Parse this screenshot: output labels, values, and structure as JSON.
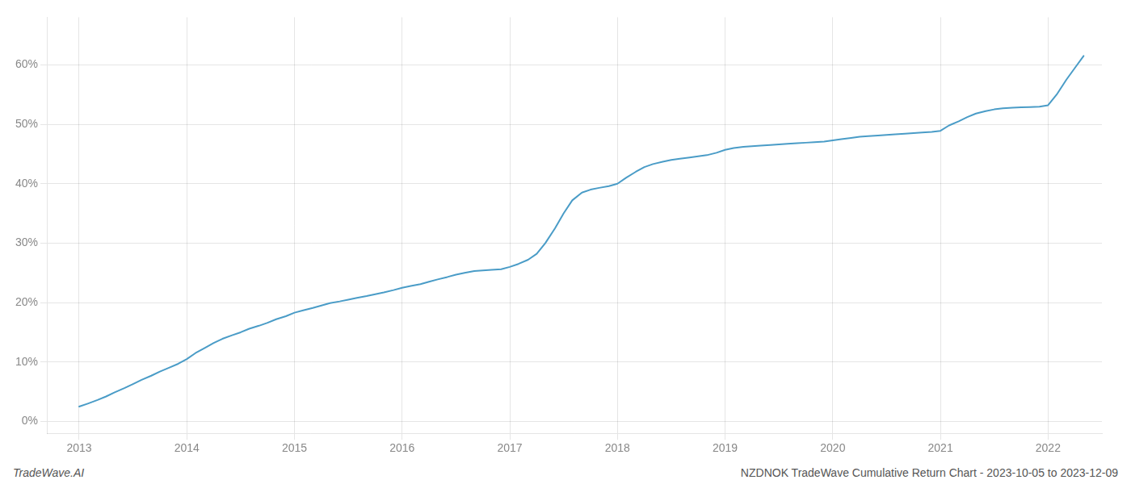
{
  "chart_data": {
    "type": "line",
    "annotations": [
      "TradeWave.AI",
      "NZDNOK TradeWave Cumulative Return Chart - 2023-10-05 to 2023-12-09"
    ],
    "x": [
      2013.0,
      2013.08,
      2013.17,
      2013.25,
      2013.33,
      2013.42,
      2013.5,
      2013.58,
      2013.67,
      2013.75,
      2013.83,
      2013.92,
      2014.0,
      2014.08,
      2014.17,
      2014.25,
      2014.33,
      2014.42,
      2014.5,
      2014.58,
      2014.67,
      2014.75,
      2014.83,
      2014.92,
      2015.0,
      2015.08,
      2015.17,
      2015.25,
      2015.33,
      2015.42,
      2015.5,
      2015.58,
      2015.67,
      2015.75,
      2015.83,
      2015.92,
      2016.0,
      2016.08,
      2016.17,
      2016.25,
      2016.33,
      2016.42,
      2016.5,
      2016.58,
      2016.67,
      2016.75,
      2016.83,
      2016.92,
      2017.0,
      2017.08,
      2017.17,
      2017.25,
      2017.33,
      2017.42,
      2017.5,
      2017.58,
      2017.67,
      2017.75,
      2017.83,
      2017.92,
      2018.0,
      2018.08,
      2018.17,
      2018.25,
      2018.33,
      2018.42,
      2018.5,
      2018.58,
      2018.67,
      2018.75,
      2018.83,
      2018.92,
      2019.0,
      2019.08,
      2019.17,
      2019.25,
      2019.33,
      2019.42,
      2019.5,
      2019.58,
      2019.67,
      2019.75,
      2019.83,
      2019.92,
      2020.0,
      2020.08,
      2020.17,
      2020.25,
      2020.33,
      2020.42,
      2020.5,
      2020.58,
      2020.67,
      2020.75,
      2020.83,
      2020.92,
      2021.0,
      2021.08,
      2021.17,
      2021.25,
      2021.33,
      2021.42,
      2021.5,
      2021.58,
      2021.67,
      2021.75,
      2021.83,
      2021.92,
      2022.0,
      2022.08,
      2022.17,
      2022.25,
      2022.33
    ],
    "values": [
      2.5,
      3.0,
      3.6,
      4.2,
      4.9,
      5.6,
      6.3,
      7.0,
      7.7,
      8.4,
      9.0,
      9.7,
      10.5,
      11.5,
      12.4,
      13.2,
      13.9,
      14.5,
      15.0,
      15.6,
      16.1,
      16.6,
      17.2,
      17.7,
      18.3,
      18.7,
      19.1,
      19.5,
      19.9,
      20.2,
      20.5,
      20.8,
      21.1,
      21.4,
      21.7,
      22.1,
      22.5,
      22.8,
      23.1,
      23.5,
      23.9,
      24.3,
      24.7,
      25.0,
      25.3,
      25.4,
      25.5,
      25.6,
      26.0,
      26.5,
      27.2,
      28.2,
      30.0,
      32.5,
      35.0,
      37.2,
      38.5,
      39.0,
      39.3,
      39.6,
      40.0,
      41.0,
      42.0,
      42.8,
      43.3,
      43.7,
      44.0,
      44.2,
      44.4,
      44.6,
      44.8,
      45.2,
      45.7,
      46.0,
      46.2,
      46.3,
      46.4,
      46.5,
      46.6,
      46.7,
      46.8,
      46.9,
      47.0,
      47.1,
      47.3,
      47.5,
      47.7,
      47.9,
      48.0,
      48.1,
      48.2,
      48.3,
      48.4,
      48.5,
      48.6,
      48.7,
      48.9,
      49.8,
      50.5,
      51.2,
      51.8,
      52.2,
      52.5,
      52.7,
      52.8,
      52.85,
      52.9,
      52.95,
      53.2,
      55.0,
      57.5,
      59.5,
      61.5
    ],
    "color": "#4a9cc7",
    "xlim": [
      2012.7,
      2022.5
    ],
    "ylim": [
      -2,
      68
    ],
    "xticks": [
      2013,
      2014,
      2015,
      2016,
      2017,
      2018,
      2019,
      2020,
      2021,
      2022
    ],
    "yticks": [
      {
        "value": 0,
        "label": "0%"
      },
      {
        "value": 10,
        "label": "10%"
      },
      {
        "value": 20,
        "label": "20%"
      },
      {
        "value": 30,
        "label": "30%"
      },
      {
        "value": 40,
        "label": "40%"
      },
      {
        "value": 50,
        "label": "50%"
      },
      {
        "value": 60,
        "label": "60%"
      }
    ],
    "grid": true
  }
}
